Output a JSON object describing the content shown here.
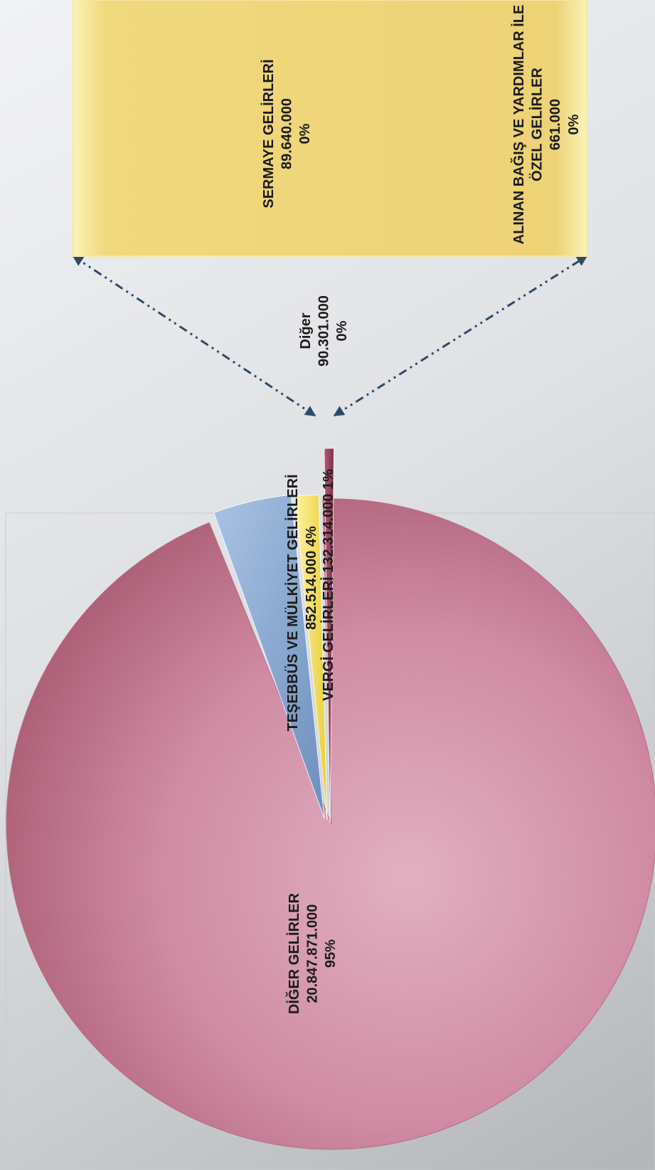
{
  "chart_data": {
    "type": "pie",
    "variant": "bar-of-pie",
    "orientation": "rotated-90",
    "slices": [
      {
        "name": "DİĞER GELİRLER",
        "value_label": "20.847.871.000",
        "percent_label": "95%",
        "value": 20847871000,
        "color": "#cf8aa2"
      },
      {
        "name": "TEŞEBBÜS VE MÜLKİYET GELİRLERİ",
        "value_label": "852.514.000",
        "percent_label": "4%",
        "value": 852514000,
        "color": "#8fb0d8"
      },
      {
        "name": "VERGİ GELİRLERİ",
        "value_label": "132.314.000",
        "percent_label": "1%",
        "value": 132314000,
        "color": "#f2e16a"
      },
      {
        "name": "Diğer",
        "value_label": "90.301.000",
        "percent_label": "0%",
        "value": 90301000,
        "color": "#9a4660"
      }
    ],
    "other_breakdown": [
      {
        "name": "SERMAYE GELİRLERİ",
        "value_label": "89.640.000",
        "percent_label": "0%",
        "value": 89640000,
        "color": "#f0d67a"
      },
      {
        "name": "ALINAN BAĞIŞ VE YARDIMLAR İLE",
        "name2": "ÖZEL GELİRLER",
        "value_label": "661.000",
        "percent_label": "0%",
        "value": 661000,
        "color": "#f0d67a"
      }
    ]
  }
}
